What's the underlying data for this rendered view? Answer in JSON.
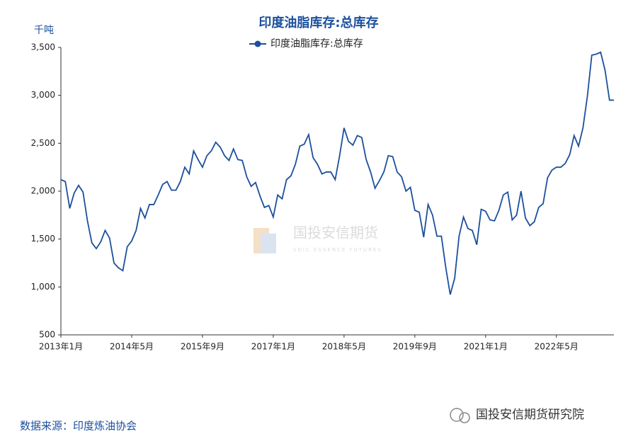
{
  "chart_data": {
    "type": "line",
    "title": "印度油脂库存:总库存",
    "y_unit": "千吨",
    "source": "数据来源：印度炼油协会",
    "brand": "国投安信期货研究院",
    "watermark": {
      "name": "国投安信期货",
      "subtitle": "SDIC ESSENCE FUTURES"
    },
    "categories": [
      "2013年1月",
      null,
      null,
      null,
      null,
      null,
      null,
      null,
      null,
      null,
      null,
      null,
      null,
      null,
      null,
      null,
      "2014年5月",
      null,
      null,
      null,
      null,
      null,
      null,
      null,
      null,
      null,
      null,
      null,
      null,
      null,
      null,
      null,
      "2015年9月",
      null,
      null,
      null,
      null,
      null,
      null,
      null,
      null,
      null,
      null,
      null,
      null,
      null,
      null,
      null,
      "2017年1月",
      null,
      null,
      null,
      null,
      null,
      null,
      null,
      null,
      null,
      null,
      null,
      null,
      null,
      null,
      null,
      "2018年5月",
      null,
      null,
      null,
      null,
      null,
      null,
      null,
      null,
      null,
      null,
      null,
      null,
      null,
      null,
      null,
      "2019年9月",
      null,
      null,
      null,
      null,
      null,
      null,
      null,
      null,
      null,
      null,
      null,
      null,
      null,
      null,
      null,
      "2021年1月",
      null,
      null,
      null,
      null,
      null,
      null,
      null,
      null,
      null,
      null,
      null,
      null,
      null,
      null,
      null,
      "2022年5月",
      null,
      null,
      null,
      null,
      null,
      null,
      null,
      null,
      null,
      null,
      null,
      null,
      null
    ],
    "series": [
      {
        "name": "印度油脂库存:总库存",
        "color": "#1c4f9c",
        "values": [
          2120,
          2100,
          1820,
          1980,
          2060,
          1990,
          1690,
          1460,
          1400,
          1470,
          1590,
          1510,
          1250,
          1200,
          1170,
          1420,
          1480,
          1590,
          1820,
          1720,
          1860,
          1860,
          1960,
          2070,
          2100,
          2010,
          2010,
          2100,
          2250,
          2180,
          2420,
          2330,
          2250,
          2370,
          2420,
          2510,
          2460,
          2370,
          2320,
          2440,
          2330,
          2320,
          2150,
          2050,
          2090,
          1950,
          1830,
          1850,
          1730,
          1960,
          1920,
          2120,
          2160,
          2280,
          2470,
          2490,
          2590,
          2350,
          2280,
          2180,
          2200,
          2200,
          2120,
          2370,
          2660,
          2520,
          2480,
          2580,
          2560,
          2330,
          2200,
          2030,
          2110,
          2200,
          2370,
          2360,
          2200,
          2150,
          2000,
          2040,
          1800,
          1780,
          1520,
          1860,
          1750,
          1530,
          1530,
          1200,
          920,
          1090,
          1530,
          1730,
          1610,
          1590,
          1440,
          1810,
          1790,
          1700,
          1690,
          1800,
          1960,
          1990,
          1700,
          1750,
          2000,
          1720,
          1640,
          1680,
          1830,
          1870,
          2140,
          2220,
          2250,
          2250,
          2290,
          2380,
          2580,
          2470,
          2660,
          2990,
          3420,
          3430,
          3450,
          3260,
          2950,
          2950
        ]
      }
    ],
    "ylim": [
      500,
      3500
    ],
    "yticks": [
      {
        "value": 500,
        "label": "500"
      },
      {
        "value": 1000,
        "label": "1,000"
      },
      {
        "value": 1500,
        "label": "1,500"
      },
      {
        "value": 2000,
        "label": "2,000"
      },
      {
        "value": 2500,
        "label": "2,500"
      },
      {
        "value": 3000,
        "label": "3,000"
      },
      {
        "value": 3500,
        "label": "3,500"
      }
    ],
    "grid": false
  }
}
